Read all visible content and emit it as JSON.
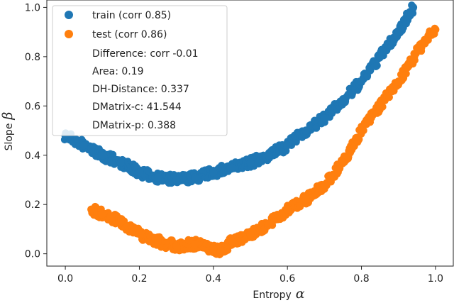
{
  "chart_data": {
    "type": "scatter",
    "xlabel": "Entropy",
    "xlabel_symbol": "α",
    "ylabel": "Slope",
    "ylabel_symbol": "β",
    "xlim": [
      -0.05,
      1.05
    ],
    "ylim": [
      -0.05,
      1.03
    ],
    "x_ticks": [
      0.0,
      0.2,
      0.4,
      0.6,
      0.8,
      1.0
    ],
    "x_tick_labels": [
      "0.0",
      "0.2",
      "0.4",
      "0.6",
      "0.8",
      "1.0"
    ],
    "y_ticks": [
      0.0,
      0.2,
      0.4,
      0.6,
      0.8,
      1.0
    ],
    "y_tick_labels": [
      "0.0",
      "0.2",
      "0.4",
      "0.6",
      "0.8",
      "1.0"
    ],
    "grid": false,
    "legend_position": "top-left",
    "series": [
      {
        "name": "train (corr 0.85)",
        "color": "#1f77b4",
        "x": [
          0.0,
          0.05,
          0.1,
          0.15,
          0.2,
          0.25,
          0.3,
          0.35,
          0.4,
          0.45,
          0.5,
          0.55,
          0.6,
          0.65,
          0.7,
          0.75,
          0.8,
          0.85,
          0.9,
          0.94
        ],
        "y": [
          0.48,
          0.44,
          0.4,
          0.37,
          0.33,
          0.31,
          0.3,
          0.31,
          0.33,
          0.35,
          0.37,
          0.4,
          0.44,
          0.5,
          0.55,
          0.62,
          0.7,
          0.8,
          0.9,
          1.0
        ]
      },
      {
        "name": "test (corr 0.86)",
        "color": "#ff7f0e",
        "x": [
          0.07,
          0.1,
          0.15,
          0.2,
          0.25,
          0.3,
          0.35,
          0.4,
          0.42,
          0.45,
          0.5,
          0.55,
          0.6,
          0.65,
          0.7,
          0.75,
          0.8,
          0.85,
          0.9,
          0.95,
          1.0
        ],
        "y": [
          0.18,
          0.16,
          0.13,
          0.08,
          0.05,
          0.03,
          0.04,
          0.02,
          0.01,
          0.05,
          0.08,
          0.12,
          0.18,
          0.22,
          0.28,
          0.37,
          0.5,
          0.6,
          0.7,
          0.82,
          0.91
        ]
      }
    ],
    "annotations": [
      "Difference: corr -0.01",
      "Area: 0.19",
      "DH-Distance: 0.337",
      "DMatrix-c: 41.544",
      "DMatrix-p: 0.388"
    ]
  }
}
